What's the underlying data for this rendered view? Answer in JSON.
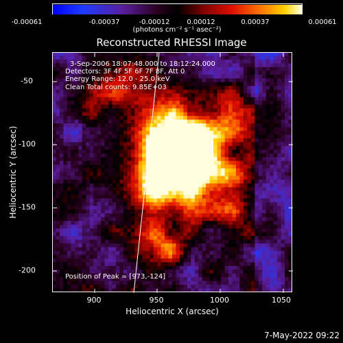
{
  "colorbar": {
    "tick_labels": [
      "-0.00061",
      "-0.00037",
      "-0.00012",
      "0.00012",
      "0.00037",
      "0.00061"
    ],
    "unit_label": "(photons cm⁻² s⁻¹ asec⁻²)",
    "min": -0.00061,
    "max": 0.00061
  },
  "plot": {
    "title": "Reconstructed RHESSI Image",
    "annotations": [
      "3-Sep-2006 18:07:48.000 to 18:12:24.000",
      "Detectors: 3F 4F 5F 6F 7F 8F, Att 0",
      "Energy Range: 12.0 - 25.0 keV",
      "Clean     Total counts: 9.85E+03"
    ],
    "peak_label": "Position of Peak = [973,-124]",
    "xlabel": "Heliocentric X (arcsec)",
    "ylabel": "Heliocentric Y (arcsec)",
    "xticks": [
      "900",
      "950",
      "1000",
      "1050"
    ],
    "yticks": [
      "-50",
      "-100",
      "-150",
      "-200"
    ]
  },
  "chart_data": {
    "type": "heatmap",
    "title": "Reconstructed RHESSI Image",
    "xlabel": "Heliocentric X (arcsec)",
    "ylabel": "Heliocentric Y (arcsec)",
    "xlim": [
      867,
      1058
    ],
    "ylim": [
      -218,
      -27
    ],
    "peak": [
      973,
      -124
    ],
    "xticks": [
      900,
      950,
      1000,
      1050
    ],
    "yticks": [
      -50,
      -100,
      -150,
      -200
    ]
  },
  "footer": {
    "datestamp": "7-May-2022 09:22"
  }
}
